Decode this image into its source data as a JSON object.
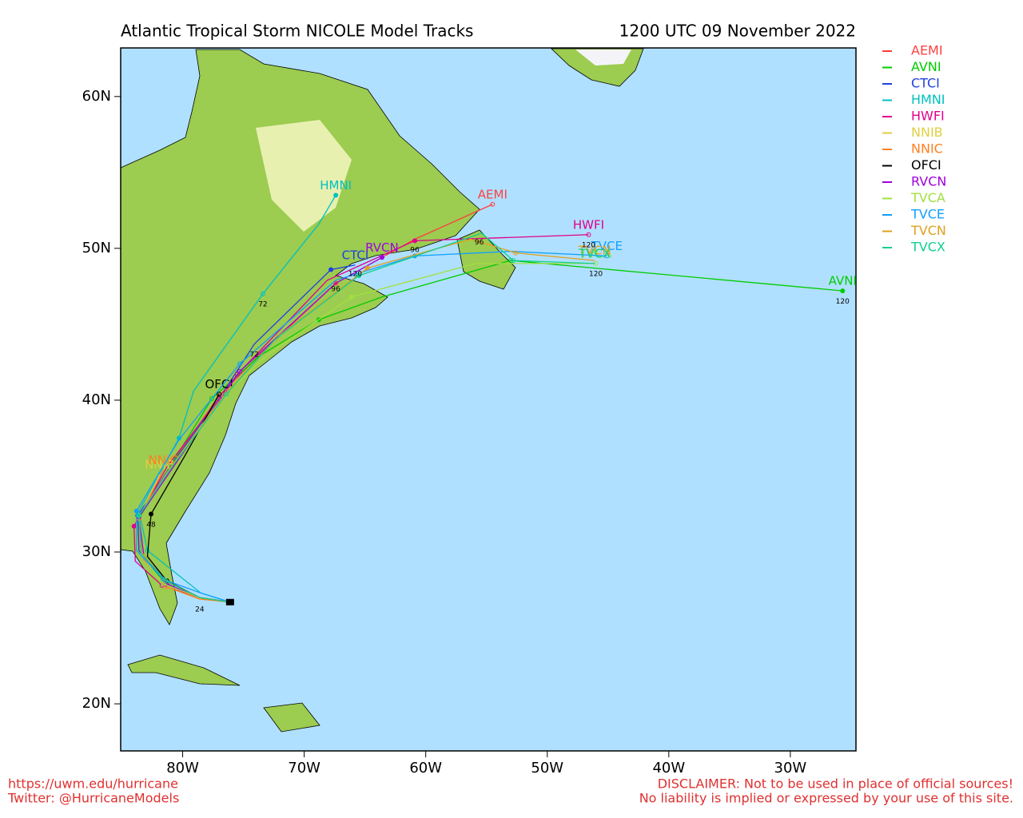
{
  "chart_data": {
    "type": "track-map",
    "title": "Atlantic Tropical Storm NICOLE Model Tracks",
    "subtitle": "1200 UTC 09 November 2022",
    "xlim": [
      -85.1,
      -24.6
    ],
    "ylim": [
      16.9,
      63.2
    ],
    "xticks": [
      {
        "value": -80,
        "label": "80W"
      },
      {
        "value": -70,
        "label": "70W"
      },
      {
        "value": -60,
        "label": "60W"
      },
      {
        "value": -50,
        "label": "50W"
      },
      {
        "value": -40,
        "label": "40W"
      },
      {
        "value": -30,
        "label": "30W"
      }
    ],
    "yticks": [
      {
        "value": 20,
        "label": "20N"
      },
      {
        "value": 30,
        "label": "30N"
      },
      {
        "value": 40,
        "label": "40N"
      },
      {
        "value": 50,
        "label": "50N"
      },
      {
        "value": 60,
        "label": "60N"
      }
    ],
    "series": [
      {
        "name": "AEMI",
        "color": "#ff4040",
        "lon": [
          -76.1,
          -78.6,
          -81.3,
          -83.6,
          -83.6,
          -80.9,
          -77.0,
          -73.4,
          -67.4,
          -60.9,
          -54.5
        ],
        "lat": [
          26.7,
          27.0,
          27.9,
          30.1,
          32.4,
          35.8,
          40.3,
          43.2,
          47.7,
          50.6,
          52.9
        ]
      },
      {
        "name": "AVNI",
        "color": "#00cc00",
        "lon": [
          -76.1,
          -78.6,
          -81.3,
          -83.2,
          -83.6,
          -81.3,
          -77.6,
          -73.7,
          -68.8,
          -63.6,
          -53.0,
          -39.3,
          -25.7
        ],
        "lat": [
          26.7,
          27.0,
          27.9,
          29.5,
          32.2,
          35.3,
          40.1,
          42.9,
          45.3,
          46.8,
          49.2,
          48.2,
          47.2
        ]
      },
      {
        "name": "CTCI",
        "color": "#2040e0",
        "lon": [
          -76.1,
          -78.6,
          -81.3,
          -83.6,
          -83.7,
          -80.6,
          -77.0,
          -74.1,
          -67.8,
          -65.8
        ],
        "lat": [
          26.7,
          27.0,
          28.1,
          30.1,
          32.4,
          36.1,
          40.1,
          43.7,
          48.6,
          48.9
        ]
      },
      {
        "name": "HMNI",
        "color": "#00c0c0",
        "lon": [
          -76.1,
          -78.5,
          -82.9,
          -83.6,
          -80.3,
          -79.1,
          -73.4,
          -68.8,
          -67.4
        ],
        "lat": [
          26.7,
          27.3,
          30.1,
          32.7,
          37.5,
          40.6,
          47.0,
          51.6,
          53.5
        ]
      },
      {
        "name": "HWFI",
        "color": "#e0008c",
        "lon": [
          -76.1,
          -78.6,
          -81.7,
          -83.9,
          -84.0,
          -81.3,
          -75.5,
          -68.1,
          -60.9,
          -53.7,
          -46.6
        ],
        "lat": [
          26.7,
          27.0,
          27.8,
          29.4,
          31.7,
          35.6,
          41.7,
          47.9,
          50.5,
          50.7,
          50.9
        ]
      },
      {
        "name": "NNIB",
        "color": "#e0d040",
        "lon": [
          -76.1,
          -78.6,
          -81.3,
          -83.2,
          -83.6,
          -81.9
        ],
        "lat": [
          26.7,
          26.9,
          27.7,
          29.5,
          32.2,
          35.1
        ]
      },
      {
        "name": "NNIC",
        "color": "#ff8020",
        "lon": [
          -76.1,
          -78.6,
          -81.3,
          -83.2,
          -83.6,
          -81.6
        ],
        "lat": [
          26.7,
          26.9,
          27.7,
          29.5,
          32.2,
          35.4
        ]
      },
      {
        "name": "OFCI",
        "color": "#000000",
        "lon": [
          -76.1,
          -78.6,
          -81.3,
          -82.9,
          -82.6,
          -79.7,
          -77.0
        ],
        "lat": [
          26.7,
          27.0,
          28.1,
          29.7,
          32.5,
          36.5,
          40.4
        ]
      },
      {
        "name": "RVCN",
        "color": "#a000e0",
        "lon": [
          -76.1,
          -78.6,
          -81.3,
          -83.2,
          -83.6,
          -80.6,
          -75.3,
          -67.4,
          -63.6
        ],
        "lat": [
          26.7,
          27.0,
          27.9,
          29.8,
          32.3,
          35.8,
          41.9,
          47.7,
          49.4
        ]
      },
      {
        "name": "TVCA",
        "color": "#a0e040",
        "lon": [
          -76.1,
          -78.6,
          -81.6,
          -83.4,
          -83.6,
          -80.9,
          -76.6,
          -73.0,
          -66.1,
          -55.9,
          -46.0
        ],
        "lat": [
          26.7,
          27.0,
          27.9,
          29.8,
          32.4,
          35.7,
          40.3,
          43.0,
          46.8,
          49.0,
          49.0
        ]
      },
      {
        "name": "TVCE",
        "color": "#10a0ff",
        "lon": [
          -76.1,
          -78.5,
          -81.6,
          -83.8,
          -83.8,
          -80.3,
          -75.3,
          -67.4,
          -60.9,
          -53.0,
          -45.1
        ],
        "lat": [
          26.7,
          27.3,
          28.2,
          30.1,
          32.7,
          37.4,
          42.4,
          47.9,
          49.5,
          49.8,
          49.5
        ]
      },
      {
        "name": "TVCN",
        "color": "#e0a020",
        "lon": [
          -76.1,
          -78.6,
          -81.4,
          -83.5,
          -83.6,
          -80.8,
          -76.3,
          -72.0,
          -64.8,
          -56.3,
          -52.6,
          -46.1
        ],
        "lat": [
          26.7,
          27.0,
          28.1,
          30.1,
          32.4,
          35.8,
          40.6,
          44.3,
          48.7,
          50.6,
          49.7,
          49.2
        ]
      },
      {
        "name": "TVCX",
        "color": "#10d090",
        "lon": [
          -76.1,
          -78.6,
          -81.4,
          -83.4,
          -83.6,
          -80.8,
          -76.4,
          -72.4,
          -65.5,
          -55.4,
          -52.8,
          -46.1
        ],
        "lat": [
          26.7,
          27.0,
          28.1,
          29.9,
          32.4,
          35.7,
          40.4,
          44.0,
          48.2,
          51.0,
          49.2,
          49.0
        ]
      }
    ],
    "hour_labels": [
      {
        "text": "120",
        "lon": -25.7,
        "lat": 46.5
      },
      {
        "text": "120",
        "lon": -46.6,
        "lat": 50.2
      },
      {
        "text": "120",
        "lon": -46.0,
        "lat": 48.3
      },
      {
        "text": "120",
        "lon": -65.8,
        "lat": 48.3
      },
      {
        "text": "96",
        "lon": -55.6,
        "lat": 50.4
      },
      {
        "text": "96",
        "lon": -60.9,
        "lat": 49.9
      },
      {
        "text": "96",
        "lon": -67.4,
        "lat": 47.3
      },
      {
        "text": "72",
        "lon": -73.4,
        "lat": 46.3
      },
      {
        "text": "72",
        "lon": -74.1,
        "lat": 43.0
      },
      {
        "text": "48",
        "lon": -82.6,
        "lat": 31.8
      },
      {
        "text": "24",
        "lon": -78.6,
        "lat": 26.2
      }
    ]
  },
  "footer": {
    "url": "https://uwm.edu/hurricane",
    "twitter": "Twitter: @HurricaneModels",
    "disclaimer": "DISCLAIMER: Not to be used in place of official sources!",
    "liability": "No liability is implied or expressed by your use of this site."
  }
}
